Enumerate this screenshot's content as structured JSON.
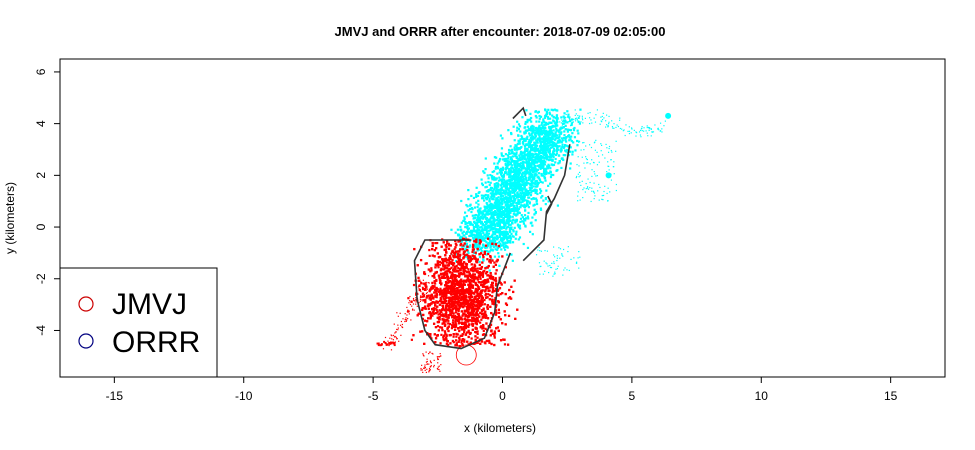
{
  "chart_data": {
    "type": "scatter",
    "title": "JMVJ and ORRR after encounter: 2018-07-09 02:05:00",
    "xlabel": "x (kilometers)",
    "ylabel": "y (kilometers)",
    "xlim": [
      -17.1,
      17.1
    ],
    "ylim": [
      -5.8,
      6.5
    ],
    "x_ticks": [
      -15,
      -10,
      -5,
      0,
      5,
      10,
      15
    ],
    "x_tick_labels": [
      "-15",
      "-10",
      "-5",
      "0",
      "5",
      "10",
      "15"
    ],
    "y_ticks": [
      -4,
      -2,
      0,
      2,
      4,
      6
    ],
    "y_tick_labels": [
      "-4",
      "-2",
      "0",
      "2",
      "4",
      "6"
    ],
    "grid": false,
    "legend_position": "bottom-left",
    "legend": [
      {
        "label": "JMVJ",
        "color": "#cc0000"
      },
      {
        "label": "ORRR",
        "color": "#000080"
      }
    ],
    "series": [
      {
        "name": "ORRR",
        "color": "#00ffff",
        "points": [
          [
            1.0,
            4.3
          ],
          [
            1.8,
            3.6
          ],
          [
            2.4,
            2.9
          ],
          [
            0.4,
            3.2
          ],
          [
            -0.4,
            2.4
          ],
          [
            1.2,
            1.4
          ],
          [
            -1.0,
            0.8
          ],
          [
            0.0,
            0.2
          ],
          [
            1.5,
            0.6
          ],
          [
            -1.2,
            -0.6
          ],
          [
            0.3,
            -0.9
          ],
          [
            2.6,
            2.2
          ],
          [
            0.6,
            4.55
          ],
          [
            1.2,
            5.2
          ],
          [
            3.0,
            1.8
          ],
          [
            3.9,
            2.1
          ],
          [
            4.1,
            2.0
          ],
          [
            5.0,
            4.6
          ],
          [
            6.4,
            4.3
          ],
          [
            1.6,
            -1.4
          ]
        ]
      },
      {
        "name": "JMVJ",
        "color": "#ff0000",
        "points": [
          [
            -2.8,
            -0.6
          ],
          [
            -1.5,
            -0.4
          ],
          [
            -0.6,
            -1.2
          ],
          [
            -2.9,
            -1.5
          ],
          [
            -2.0,
            -2.2
          ],
          [
            -0.5,
            -2.6
          ],
          [
            -2.6,
            -3.4
          ],
          [
            -1.2,
            -3.6
          ],
          [
            -0.5,
            -3.9
          ],
          [
            -2.7,
            -4.1
          ],
          [
            -1.6,
            -4.4
          ],
          [
            -4.4,
            -4.5
          ],
          [
            -4.8,
            -4.4
          ],
          [
            -3.2,
            -4.7
          ],
          [
            -2.9,
            -5.6
          ],
          [
            -1.4,
            -4.95
          ],
          [
            -5.0,
            -3.8
          ],
          [
            -4.3,
            -2.3
          ],
          [
            -3.8,
            -2.0
          ]
        ]
      }
    ],
    "annotations": [
      "contour outline (black) around cyan and red clouds",
      "isolated cyan point at x~6.4, y~4.3",
      "isolated cyan point at x~4.1, y~2.0",
      "small red circle near x~-1.4, y~-4.95"
    ]
  }
}
